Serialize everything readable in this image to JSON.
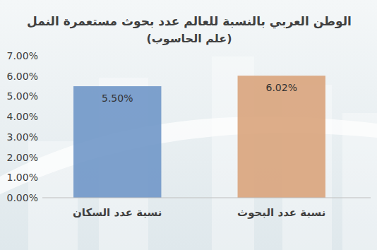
{
  "chart_data": {
    "type": "bar",
    "title": "الوطن العربي بالنسبة للعالم عدد بحوث مستعمرة النمل",
    "subtitle": "(علم الحاسوب)",
    "categories": [
      "نسبة عدد السكان",
      "نسبة عدد البحوث"
    ],
    "values": [
      5.5,
      6.02
    ],
    "value_labels": [
      "5.50%",
      "6.02%"
    ],
    "colors": [
      "#7097c8",
      "#d9a47c"
    ],
    "ylim": [
      0,
      7
    ],
    "yticks": [
      {
        "value": 0,
        "label": "0.00%"
      },
      {
        "value": 1,
        "label": "1.00%"
      },
      {
        "value": 2,
        "label": "2.00%"
      },
      {
        "value": 3,
        "label": "3.00%"
      },
      {
        "value": 4,
        "label": "4.00%"
      },
      {
        "value": 5,
        "label": "5.00%"
      },
      {
        "value": 6,
        "label": "6.00%"
      },
      {
        "value": 7,
        "label": "7.00%"
      }
    ],
    "grid": false,
    "data_labels": true
  }
}
